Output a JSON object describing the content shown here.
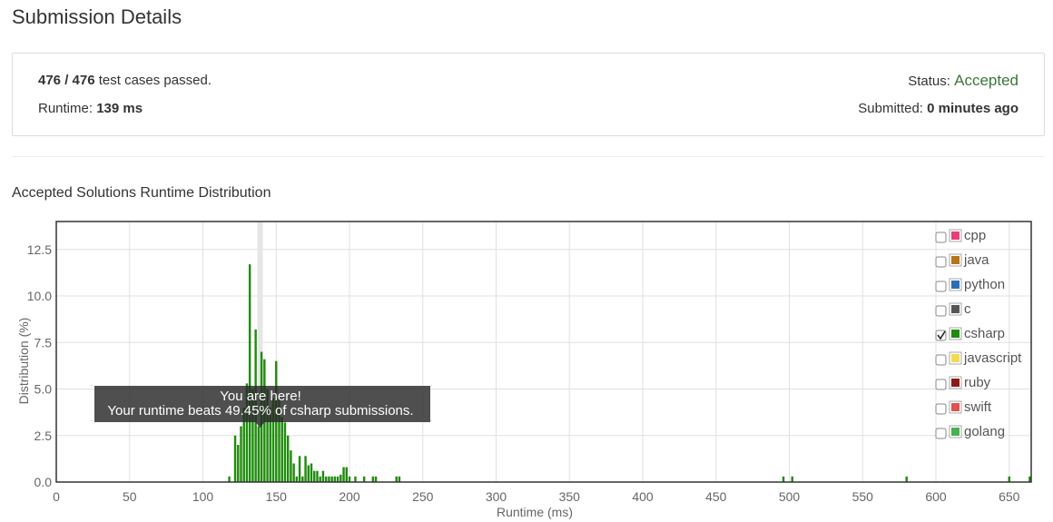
{
  "page_title": "Submission Details",
  "summary": {
    "passed": "476 / 476",
    "passed_suffix": " test cases passed.",
    "runtime_label": "Runtime: ",
    "runtime_value": "139 ms",
    "status_label": "Status: ",
    "status_value": "Accepted",
    "submitted_label": "Submitted: ",
    "submitted_value": "0 minutes ago"
  },
  "section_title": "Accepted Solutions Runtime Distribution",
  "colors": {
    "accent_green": "#3c763d",
    "bar": "#1f8c0c",
    "highlight": "#e6e6e6"
  },
  "chart_data": {
    "type": "bar",
    "xlabel": "Runtime (ms)",
    "ylabel": "Distribution (%)",
    "xlim": [
      0,
      665
    ],
    "ylim": [
      0,
      14
    ],
    "xticks": [
      "0",
      "50",
      "100",
      "150",
      "200",
      "250",
      "300",
      "350",
      "400",
      "450",
      "500",
      "550",
      "600",
      "650"
    ],
    "yticks": [
      "0.0",
      "2.5",
      "5.0",
      "7.5",
      "10.0",
      "12.5"
    ],
    "grid": true,
    "highlight_x": 139,
    "series": [
      {
        "name": "csharp",
        "x": [
          118,
          122,
          124,
          126,
          128,
          130,
          132,
          134,
          136,
          138,
          140,
          142,
          144,
          146,
          148,
          150,
          152,
          154,
          156,
          158,
          160,
          162,
          164,
          166,
          168,
          170,
          172,
          174,
          176,
          178,
          180,
          182,
          184,
          186,
          188,
          190,
          192,
          194,
          196,
          198,
          200,
          204,
          210,
          216,
          218,
          232,
          234,
          496,
          502,
          580,
          650,
          664
        ],
        "values": [
          0.3,
          2.5,
          2.0,
          3.0,
          4.0,
          5.3,
          11.7,
          5.0,
          8.2,
          3.0,
          7.0,
          6.6,
          5.0,
          4.0,
          4.5,
          6.5,
          4.5,
          3.5,
          3.2,
          2.5,
          1.7,
          1.0,
          0.3,
          1.4,
          0.3,
          1.4,
          0.9,
          1.0,
          0.6,
          0.6,
          0.3,
          0.6,
          0.3,
          0.3,
          0.3,
          0.3,
          0.3,
          0.4,
          0.8,
          0.8,
          0.3,
          0.3,
          0.3,
          0.3,
          0.3,
          0.3,
          0.3,
          0.3,
          0.3,
          0.3,
          0.3,
          0.3
        ]
      }
    ],
    "legend": {
      "placement": "top-right",
      "items": [
        {
          "name": "cpp",
          "color": "#e83e7a",
          "checked": false
        },
        {
          "name": "java",
          "color": "#b5751b",
          "checked": false
        },
        {
          "name": "python",
          "color": "#2a6eb5",
          "checked": false
        },
        {
          "name": "c",
          "color": "#555555",
          "checked": false
        },
        {
          "name": "csharp",
          "color": "#1f8c0c",
          "checked": true
        },
        {
          "name": "javascript",
          "color": "#f0dc4e",
          "checked": false
        },
        {
          "name": "ruby",
          "color": "#8b1a1a",
          "checked": false
        },
        {
          "name": "swift",
          "color": "#e0524f",
          "checked": false
        },
        {
          "name": "golang",
          "color": "#4caf50",
          "checked": false
        }
      ]
    },
    "tooltip": {
      "line1": "You are here!",
      "line2": "Your runtime beats 49.45% of csharp submissions."
    }
  }
}
